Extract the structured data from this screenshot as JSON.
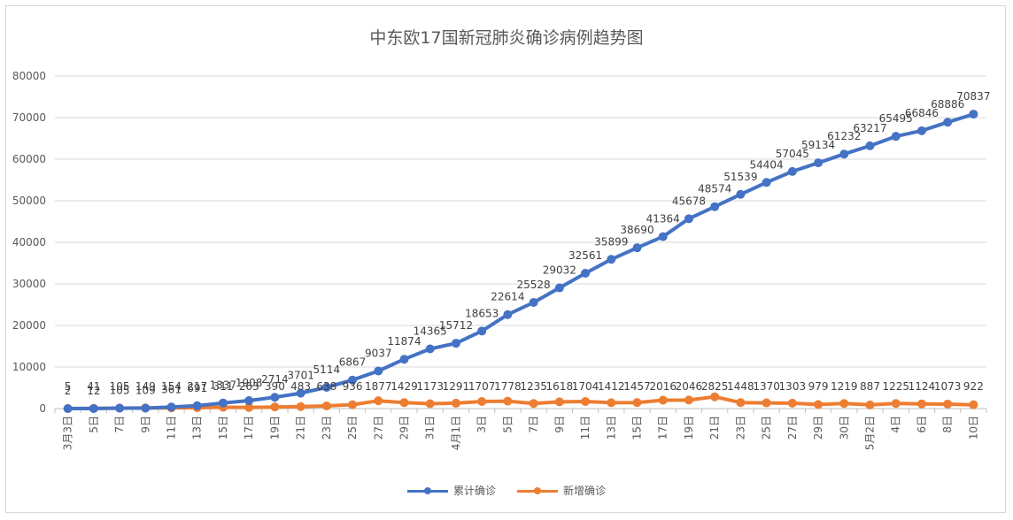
{
  "chart_data": {
    "type": "line",
    "title": "中东欧17国新冠肺炎确诊病例趋势图",
    "xlabel": "",
    "ylabel": "",
    "ylim": [
      0,
      80000
    ],
    "yticks": [
      0,
      10000,
      20000,
      30000,
      40000,
      50000,
      60000,
      70000,
      80000
    ],
    "grid": true,
    "legend_position": "bottom",
    "categories": [
      "3月3日",
      "5日",
      "7日",
      "9日",
      "11日",
      "13日",
      "15日",
      "17日",
      "19日",
      "21日",
      "23日",
      "25日",
      "27日",
      "29日",
      "31日",
      "4月1日",
      "3日",
      "5日",
      "7日",
      "9日",
      "11日",
      "13日",
      "15日",
      "17日",
      "19日",
      "21日",
      "23日",
      "25日",
      "27日",
      "29日",
      "30日",
      "5月2日",
      "4日",
      "6日",
      "8日",
      "10日"
    ],
    "series": [
      {
        "name": "累计确诊",
        "color": "#4472c4",
        "values": [
          2,
          12,
          105,
          109,
          361,
          691,
          1337,
          1908,
          2714,
          3701,
          5114,
          6867,
          9037,
          11874,
          14365,
          15712,
          18653,
          22614,
          25528,
          29032,
          32561,
          35899,
          38690,
          41364,
          45678,
          48574,
          51539,
          54404,
          57045,
          59134,
          61232,
          63217,
          65495,
          66846,
          68886,
          70837
        ],
        "labels": [
          "2",
          "12",
          "105",
          "109",
          "361",
          "691",
          "1337",
          "1908",
          "2714",
          "3701",
          "5114",
          "6867",
          "9037",
          "11874",
          "14365",
          "15712",
          "18653",
          "22614",
          "25528",
          "29032",
          "32561",
          "35899",
          "38690",
          "41364",
          "45678",
          "48574",
          "51539",
          "54404",
          "57045",
          "59134",
          "61232",
          "63217",
          "65495",
          "66846",
          "68886",
          "70837"
        ]
      },
      {
        "name": "新增确诊",
        "color": "#ed7d31",
        "values": [
          5,
          41,
          105,
          149,
          154,
          217,
          311,
          263,
          390,
          483,
          638,
          936,
          1877,
          1429,
          1173,
          1291,
          1707,
          1778,
          1235,
          1618,
          1704,
          1412,
          1457,
          2016,
          2046,
          2825,
          1448,
          1370,
          1303,
          979,
          1219,
          887,
          1225,
          1124,
          1073,
          922
        ],
        "labels": [
          "5",
          "41",
          "105",
          "149",
          "154",
          "217",
          "311",
          "263",
          "390",
          "483",
          "638",
          "936",
          "1877",
          "1429",
          "1173",
          "1291",
          "1707",
          "1778",
          "1235",
          "1618",
          "1704",
          "1412",
          "1457",
          "2016",
          "2046",
          "2825",
          "1448",
          "1370",
          "1303",
          "979",
          "1219",
          "887",
          "1225",
          "1124",
          "1073",
          "922"
        ]
      }
    ]
  }
}
